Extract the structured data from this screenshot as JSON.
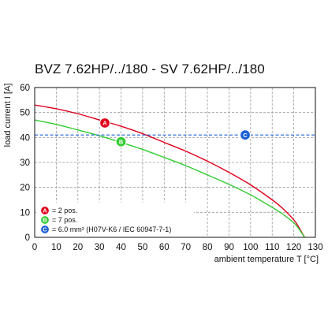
{
  "chart_data": {
    "type": "line",
    "title": "BVZ 7.62HP/../180 - SV 7.62HP/../180",
    "xlabel": "ambient temperature T [°C]",
    "ylabel": "load current I [A]",
    "xlim": [
      0,
      130
    ],
    "ylim": [
      0,
      60
    ],
    "xticks": [
      0,
      10,
      20,
      30,
      40,
      50,
      60,
      70,
      80,
      90,
      100,
      110,
      120,
      130
    ],
    "yticks": [
      0,
      10,
      20,
      30,
      40,
      50,
      60
    ],
    "grid": true,
    "series": [
      {
        "name": "A",
        "color": "#e0001b",
        "x": [
          0,
          10,
          20,
          30,
          40,
          50,
          60,
          70,
          80,
          90,
          100,
          110,
          115,
          120,
          122,
          124,
          125
        ],
        "y": [
          53,
          51.5,
          49.5,
          47,
          44.5,
          41.5,
          38,
          34.5,
          30.5,
          26,
          21,
          15,
          11.5,
          7,
          4.5,
          1.5,
          0
        ]
      },
      {
        "name": "B",
        "color": "#33cc33",
        "x": [
          0,
          10,
          20,
          30,
          40,
          50,
          60,
          70,
          80,
          90,
          100,
          110,
          115,
          120,
          122,
          124,
          125
        ],
        "y": [
          47,
          45.2,
          43,
          40.7,
          38,
          35.2,
          32,
          28.7,
          25,
          21.2,
          17,
          12,
          9.2,
          5.8,
          3.8,
          1.3,
          0
        ]
      },
      {
        "name": "C",
        "color": "#1a5fd6",
        "dashed": true,
        "x": [
          0,
          130
        ],
        "y": [
          41,
          41
        ]
      }
    ],
    "markers": [
      {
        "label": "A",
        "color": "#e0001b",
        "x": 32.5,
        "y": 45.8
      },
      {
        "label": "B",
        "color": "#33cc33",
        "x": 40,
        "y": 38.3
      },
      {
        "label": "C",
        "color": "#1a5fd6",
        "x": 97.5,
        "y": 41
      }
    ],
    "legend": [
      {
        "label": "A",
        "color": "#e0001b",
        "text": "= 2 pos."
      },
      {
        "label": "B",
        "color": "#33cc33",
        "text": "= 7 pos."
      },
      {
        "label": "C",
        "color": "#1a5fd6",
        "text": "= 6.0 mm² (H07V-K6 / IEC 60947-7-1)"
      }
    ]
  }
}
